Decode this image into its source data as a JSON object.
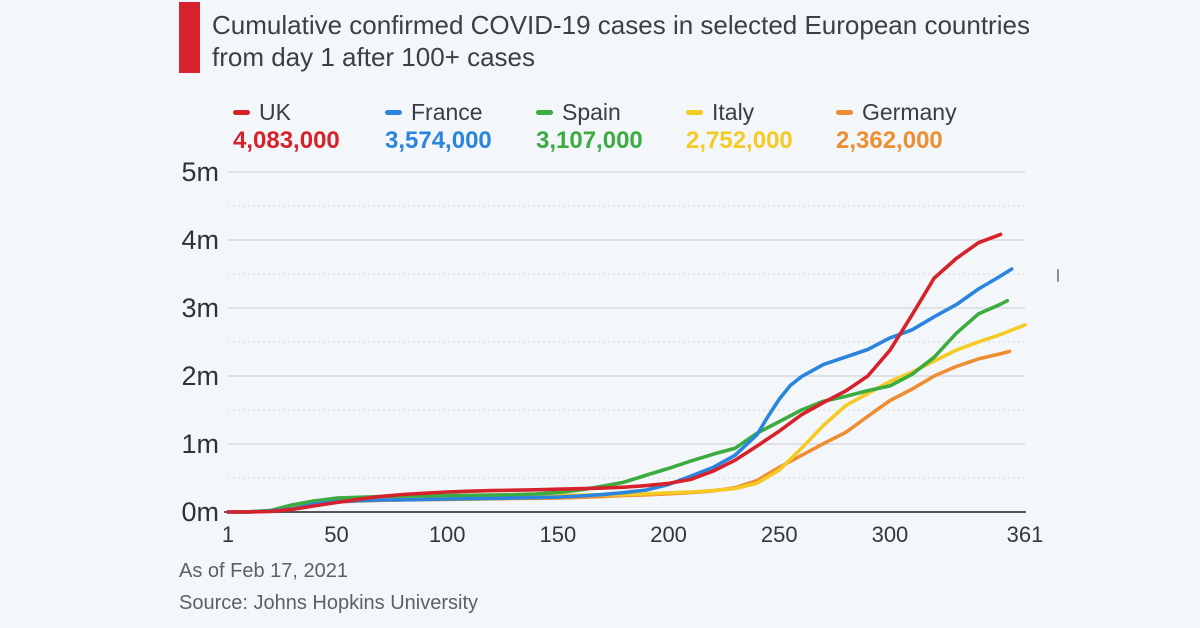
{
  "page": {
    "background": "#f3f7fa"
  },
  "header": {
    "accent_color": "#d7232e",
    "title": "Cumulative confirmed COVID-19 cases in selected European countries from day 1 after 100+ cases"
  },
  "legend": {
    "items": [
      {
        "label": "UK",
        "value": "4,083,000",
        "color": "#d6222b"
      },
      {
        "label": "France",
        "value": "3,574,000",
        "color": "#2b85de"
      },
      {
        "label": "Spain",
        "value": "3,107,000",
        "color": "#3cab40"
      },
      {
        "label": "Italy",
        "value": "2,752,000",
        "color": "#f5ca24"
      },
      {
        "label": "Germany",
        "value": "2,362,000",
        "color": "#ee8e32"
      }
    ]
  },
  "chart_data": {
    "type": "line",
    "title": "Cumulative confirmed COVID-19 cases in selected European countries from day 1 after 100+ cases",
    "xlabel": "",
    "ylabel": "",
    "unit": "cumulative cases, millions",
    "legend_position": "top",
    "grid": "horizontal",
    "x_axis": {
      "min": 1,
      "max": 361,
      "ticks": [
        1,
        50,
        100,
        150,
        200,
        250,
        300,
        361
      ],
      "tick_labels": [
        "1",
        "50",
        "100",
        "150",
        "200",
        "250",
        "300",
        "361"
      ]
    },
    "y_axis": {
      "min": 0,
      "max_m": 5,
      "tick_values_m": [
        0,
        1,
        2,
        3,
        4,
        5
      ],
      "tick_labels": [
        "0m",
        "1m",
        "2m",
        "3m",
        "4m",
        "5m"
      ],
      "minor_gridlines_m": [
        0.5,
        1.5,
        2.5,
        3.5,
        4.5
      ]
    },
    "series": [
      {
        "name": "Germany",
        "color": "#ee8e32",
        "final_value": 2362000,
        "days": [
          1,
          10,
          20,
          30,
          40,
          50,
          60,
          70,
          80,
          90,
          100,
          110,
          120,
          130,
          140,
          150,
          160,
          170,
          180,
          190,
          200,
          210,
          220,
          230,
          240,
          250,
          260,
          270,
          280,
          290,
          300,
          310,
          320,
          330,
          340,
          350,
          354
        ],
        "values_m": [
          0.0001,
          0.001,
          0.022,
          0.072,
          0.122,
          0.147,
          0.163,
          0.172,
          0.178,
          0.183,
          0.186,
          0.19,
          0.195,
          0.199,
          0.202,
          0.207,
          0.216,
          0.228,
          0.242,
          0.253,
          0.268,
          0.285,
          0.31,
          0.356,
          0.464,
          0.658,
          0.833,
          1.006,
          1.171,
          1.407,
          1.64,
          1.808,
          2.0,
          2.141,
          2.252,
          2.328,
          2.362
        ]
      },
      {
        "name": "Italy",
        "color": "#f5ca24",
        "final_value": 2752000,
        "days": [
          1,
          10,
          20,
          30,
          40,
          50,
          60,
          70,
          80,
          90,
          100,
          110,
          120,
          130,
          140,
          150,
          160,
          170,
          180,
          190,
          200,
          210,
          220,
          230,
          240,
          250,
          260,
          270,
          280,
          290,
          300,
          310,
          320,
          330,
          340,
          350,
          361
        ],
        "values_m": [
          0.0001,
          0.0025,
          0.018,
          0.064,
          0.115,
          0.157,
          0.187,
          0.21,
          0.221,
          0.228,
          0.233,
          0.236,
          0.238,
          0.241,
          0.243,
          0.245,
          0.247,
          0.251,
          0.256,
          0.268,
          0.281,
          0.294,
          0.314,
          0.344,
          0.423,
          0.616,
          0.936,
          1.273,
          1.564,
          1.742,
          1.921,
          2.057,
          2.221,
          2.381,
          2.501,
          2.611,
          2.752
        ]
      },
      {
        "name": "Spain",
        "color": "#3cab40",
        "final_value": 3107000,
        "days": [
          1,
          10,
          20,
          30,
          40,
          50,
          60,
          70,
          80,
          90,
          100,
          110,
          120,
          130,
          140,
          150,
          160,
          170,
          180,
          190,
          200,
          210,
          220,
          230,
          240,
          250,
          260,
          270,
          280,
          290,
          300,
          310,
          320,
          330,
          340,
          350,
          353
        ],
        "values_m": [
          0.0001,
          0.001,
          0.02,
          0.104,
          0.163,
          0.204,
          0.216,
          0.228,
          0.234,
          0.24,
          0.243,
          0.246,
          0.249,
          0.254,
          0.264,
          0.288,
          0.323,
          0.378,
          0.44,
          0.543,
          0.641,
          0.749,
          0.849,
          0.937,
          1.16,
          1.33,
          1.5,
          1.63,
          1.7,
          1.785,
          1.854,
          2.025,
          2.276,
          2.63,
          2.913,
          3.056,
          3.107
        ]
      },
      {
        "name": "France",
        "color": "#2b85de",
        "final_value": 3574000,
        "days": [
          1,
          10,
          20,
          30,
          40,
          50,
          60,
          70,
          80,
          90,
          100,
          110,
          120,
          130,
          140,
          150,
          160,
          170,
          180,
          190,
          200,
          210,
          220,
          230,
          240,
          245,
          250,
          255,
          260,
          270,
          280,
          290,
          300,
          310,
          320,
          330,
          340,
          350,
          355
        ],
        "values_m": [
          0.0001,
          0.002,
          0.012,
          0.045,
          0.118,
          0.152,
          0.166,
          0.176,
          0.18,
          0.186,
          0.191,
          0.196,
          0.199,
          0.206,
          0.212,
          0.221,
          0.236,
          0.256,
          0.285,
          0.324,
          0.404,
          0.527,
          0.653,
          0.834,
          1.138,
          1.41,
          1.66,
          1.86,
          1.99,
          2.17,
          2.28,
          2.39,
          2.56,
          2.68,
          2.87,
          3.05,
          3.28,
          3.47,
          3.574
        ]
      },
      {
        "name": "UK",
        "color": "#d6222b",
        "final_value": 4083000,
        "days": [
          1,
          10,
          20,
          30,
          40,
          50,
          60,
          70,
          80,
          90,
          100,
          110,
          120,
          130,
          140,
          150,
          160,
          170,
          180,
          190,
          200,
          210,
          220,
          230,
          240,
          250,
          260,
          270,
          280,
          290,
          300,
          310,
          320,
          330,
          340,
          350
        ],
        "values_m": [
          0.0001,
          0.001,
          0.008,
          0.038,
          0.089,
          0.139,
          0.187,
          0.23,
          0.257,
          0.277,
          0.294,
          0.306,
          0.314,
          0.32,
          0.326,
          0.335,
          0.342,
          0.351,
          0.365,
          0.388,
          0.42,
          0.48,
          0.6,
          0.76,
          0.97,
          1.19,
          1.43,
          1.61,
          1.78,
          2.0,
          2.38,
          2.9,
          3.44,
          3.73,
          3.96,
          4.083
        ]
      }
    ]
  },
  "footer": {
    "as_of": "As of Feb 17, 2021",
    "source": "Source: Johns Hopkins University"
  }
}
